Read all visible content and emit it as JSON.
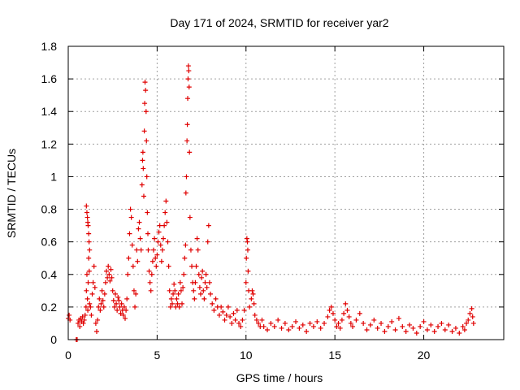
{
  "chart_data": {
    "type": "scatter",
    "title": "Day 171 of 2024, SRMTID for receiver yar2",
    "xlabel": "GPS time / hours",
    "ylabel": "SRMTID / TECUs",
    "xlim": [
      0,
      24.5
    ],
    "ylim": [
      0,
      1.8
    ],
    "xticks": [
      0,
      5,
      10,
      15,
      20
    ],
    "xtick_labels": [
      "0",
      "5",
      "10",
      "15",
      "20"
    ],
    "yticks": [
      0,
      0.2,
      0.4,
      0.6,
      0.8,
      1,
      1.2,
      1.4,
      1.6,
      1.8
    ],
    "ytick_labels": [
      "0",
      "0.2",
      "0.4",
      "0.6",
      "0.8",
      "1",
      "1.2",
      "1.4",
      "1.6",
      "1.8"
    ],
    "grid": true,
    "marker": "+",
    "marker_color": "#e00000",
    "series": [
      {
        "name": "yar2",
        "points": [
          [
            0.0,
            0.13
          ],
          [
            0.05,
            0.15
          ],
          [
            0.1,
            0.12
          ],
          [
            0.45,
            0.0
          ],
          [
            0.5,
            0.0
          ],
          [
            0.55,
            0.1
          ],
          [
            0.6,
            0.12
          ],
          [
            0.65,
            0.08
          ],
          [
            0.7,
            0.13
          ],
          [
            0.75,
            0.11
          ],
          [
            0.8,
            0.14
          ],
          [
            0.85,
            0.1
          ],
          [
            0.9,
            0.12
          ],
          [
            0.95,
            0.15
          ],
          [
            1.0,
            0.2
          ],
          [
            1.02,
            0.3
          ],
          [
            1.05,
            0.4
          ],
          [
            1.08,
            0.25
          ],
          [
            1.1,
            0.18
          ],
          [
            1.12,
            0.35
          ],
          [
            1.15,
            0.5
          ],
          [
            1.18,
            0.42
          ],
          [
            1.2,
            0.22
          ],
          [
            1.02,
            0.82
          ],
          [
            1.05,
            0.78
          ],
          [
            1.08,
            0.75
          ],
          [
            1.1,
            0.72
          ],
          [
            1.12,
            0.7
          ],
          [
            1.15,
            0.65
          ],
          [
            1.17,
            0.6
          ],
          [
            1.2,
            0.55
          ],
          [
            1.25,
            0.2
          ],
          [
            1.3,
            0.15
          ],
          [
            1.35,
            0.28
          ],
          [
            1.4,
            0.35
          ],
          [
            1.45,
            0.45
          ],
          [
            1.5,
            0.32
          ],
          [
            1.55,
            0.1
          ],
          [
            1.6,
            0.05
          ],
          [
            1.65,
            0.12
          ],
          [
            1.7,
            0.2
          ],
          [
            1.75,
            0.25
          ],
          [
            1.8,
            0.18
          ],
          [
            1.85,
            0.22
          ],
          [
            1.9,
            0.3
          ],
          [
            1.95,
            0.24
          ],
          [
            2.0,
            0.2
          ],
          [
            2.05,
            0.28
          ],
          [
            2.1,
            0.35
          ],
          [
            2.15,
            0.42
          ],
          [
            2.2,
            0.38
          ],
          [
            2.25,
            0.45
          ],
          [
            2.3,
            0.4
          ],
          [
            2.35,
            0.36
          ],
          [
            2.4,
            0.43
          ],
          [
            2.45,
            0.38
          ],
          [
            2.5,
            0.3
          ],
          [
            2.55,
            0.24
          ],
          [
            2.6,
            0.2
          ],
          [
            2.65,
            0.28
          ],
          [
            2.7,
            0.22
          ],
          [
            2.75,
            0.18
          ],
          [
            2.8,
            0.26
          ],
          [
            2.85,
            0.24
          ],
          [
            2.9,
            0.2
          ],
          [
            2.95,
            0.16
          ],
          [
            3.0,
            0.22
          ],
          [
            3.05,
            0.18
          ],
          [
            3.1,
            0.15
          ],
          [
            3.15,
            0.2
          ],
          [
            3.2,
            0.13
          ],
          [
            3.25,
            0.18
          ],
          [
            3.3,
            0.25
          ],
          [
            3.35,
            0.4
          ],
          [
            3.4,
            0.5
          ],
          [
            3.45,
            0.65
          ],
          [
            3.5,
            0.8
          ],
          [
            3.55,
            0.75
          ],
          [
            3.6,
            0.58
          ],
          [
            3.65,
            0.45
          ],
          [
            3.7,
            0.3
          ],
          [
            3.75,
            0.2
          ],
          [
            3.8,
            0.28
          ],
          [
            3.85,
            0.55
          ],
          [
            3.9,
            0.48
          ],
          [
            3.95,
            0.68
          ],
          [
            4.0,
            0.72
          ],
          [
            4.05,
            0.62
          ],
          [
            4.1,
            0.55
          ],
          [
            4.15,
            0.95
          ],
          [
            4.18,
            1.1
          ],
          [
            4.2,
            1.15
          ],
          [
            4.22,
            1.05
          ],
          [
            4.25,
            0.88
          ],
          [
            4.28,
            1.28
          ],
          [
            4.3,
            1.45
          ],
          [
            4.32,
            1.58
          ],
          [
            4.35,
            1.53
          ],
          [
            4.38,
            1.4
          ],
          [
            4.4,
            1.22
          ],
          [
            4.42,
            1.0
          ],
          [
            4.45,
            0.78
          ],
          [
            4.48,
            0.65
          ],
          [
            4.5,
            0.55
          ],
          [
            4.55,
            0.42
          ],
          [
            4.6,
            0.35
          ],
          [
            4.65,
            0.3
          ],
          [
            4.7,
            0.4
          ],
          [
            4.75,
            0.48
          ],
          [
            4.8,
            0.55
          ],
          [
            4.85,
            0.62
          ],
          [
            4.9,
            0.5
          ],
          [
            4.95,
            0.45
          ],
          [
            5.0,
            0.52
          ],
          [
            5.05,
            0.6
          ],
          [
            5.1,
            0.66
          ],
          [
            5.15,
            0.7
          ],
          [
            5.2,
            0.58
          ],
          [
            5.25,
            0.48
          ],
          [
            5.3,
            0.55
          ],
          [
            5.35,
            0.62
          ],
          [
            5.4,
            0.7
          ],
          [
            5.45,
            0.78
          ],
          [
            5.5,
            0.85
          ],
          [
            5.55,
            0.72
          ],
          [
            5.6,
            0.6
          ],
          [
            5.65,
            0.45
          ],
          [
            5.7,
            0.3
          ],
          [
            5.75,
            0.2
          ],
          [
            5.8,
            0.25
          ],
          [
            5.85,
            0.22
          ],
          [
            5.9,
            0.28
          ],
          [
            5.95,
            0.34
          ],
          [
            6.0,
            0.3
          ],
          [
            6.05,
            0.2
          ],
          [
            6.1,
            0.25
          ],
          [
            6.15,
            0.22
          ],
          [
            6.2,
            0.28
          ],
          [
            6.25,
            0.2
          ],
          [
            6.3,
            0.35
          ],
          [
            6.35,
            0.3
          ],
          [
            6.4,
            0.22
          ],
          [
            6.45,
            0.32
          ],
          [
            6.5,
            0.4
          ],
          [
            6.55,
            0.5
          ],
          [
            6.6,
            0.58
          ],
          [
            6.62,
            0.9
          ],
          [
            6.65,
            1.0
          ],
          [
            6.68,
            1.22
          ],
          [
            6.7,
            1.32
          ],
          [
            6.72,
            1.48
          ],
          [
            6.74,
            1.6
          ],
          [
            6.76,
            1.68
          ],
          [
            6.78,
            1.65
          ],
          [
            6.8,
            1.55
          ],
          [
            6.82,
            1.15
          ],
          [
            6.85,
            0.75
          ],
          [
            6.9,
            0.55
          ],
          [
            6.95,
            0.45
          ],
          [
            7.0,
            0.35
          ],
          [
            7.05,
            0.3
          ],
          [
            7.1,
            0.25
          ],
          [
            7.15,
            0.35
          ],
          [
            7.2,
            0.45
          ],
          [
            7.25,
            0.62
          ],
          [
            7.3,
            0.55
          ],
          [
            7.35,
            0.4
          ],
          [
            7.4,
            0.32
          ],
          [
            7.45,
            0.28
          ],
          [
            7.5,
            0.38
          ],
          [
            7.55,
            0.42
          ],
          [
            7.6,
            0.3
          ],
          [
            7.65,
            0.25
          ],
          [
            7.7,
            0.35
          ],
          [
            7.75,
            0.4
          ],
          [
            7.8,
            0.32
          ],
          [
            7.85,
            0.6
          ],
          [
            7.9,
            0.7
          ],
          [
            7.95,
            0.35
          ],
          [
            8.0,
            0.28
          ],
          [
            8.1,
            0.22
          ],
          [
            8.2,
            0.18
          ],
          [
            8.3,
            0.25
          ],
          [
            8.4,
            0.2
          ],
          [
            8.5,
            0.15
          ],
          [
            8.6,
            0.2
          ],
          [
            8.7,
            0.17
          ],
          [
            8.8,
            0.12
          ],
          [
            8.9,
            0.15
          ],
          [
            9.0,
            0.2
          ],
          [
            9.1,
            0.14
          ],
          [
            9.2,
            0.1
          ],
          [
            9.3,
            0.16
          ],
          [
            9.4,
            0.12
          ],
          [
            9.5,
            0.18
          ],
          [
            9.6,
            0.1
          ],
          [
            9.7,
            0.08
          ],
          [
            9.8,
            0.12
          ],
          [
            9.9,
            0.18
          ],
          [
            10.0,
            0.35
          ],
          [
            10.02,
            0.5
          ],
          [
            10.05,
            0.62
          ],
          [
            10.08,
            0.6
          ],
          [
            10.1,
            0.55
          ],
          [
            10.12,
            0.42
          ],
          [
            10.15,
            0.3
          ],
          [
            10.2,
            0.2
          ],
          [
            10.3,
            0.25
          ],
          [
            10.35,
            0.3
          ],
          [
            10.4,
            0.28
          ],
          [
            10.45,
            0.22
          ],
          [
            10.5,
            0.15
          ],
          [
            10.6,
            0.12
          ],
          [
            10.7,
            0.1
          ],
          [
            10.8,
            0.08
          ],
          [
            10.9,
            0.12
          ],
          [
            11.0,
            0.08
          ],
          [
            11.2,
            0.06
          ],
          [
            11.4,
            0.1
          ],
          [
            11.6,
            0.08
          ],
          [
            11.8,
            0.12
          ],
          [
            12.0,
            0.07
          ],
          [
            12.2,
            0.1
          ],
          [
            12.4,
            0.06
          ],
          [
            12.6,
            0.08
          ],
          [
            12.8,
            0.11
          ],
          [
            13.0,
            0.07
          ],
          [
            13.2,
            0.09
          ],
          [
            13.4,
            0.05
          ],
          [
            13.6,
            0.1
          ],
          [
            13.8,
            0.08
          ],
          [
            14.0,
            0.11
          ],
          [
            14.2,
            0.07
          ],
          [
            14.4,
            0.1
          ],
          [
            14.6,
            0.14
          ],
          [
            14.7,
            0.18
          ],
          [
            14.8,
            0.2
          ],
          [
            14.9,
            0.16
          ],
          [
            15.0,
            0.12
          ],
          [
            15.1,
            0.08
          ],
          [
            15.2,
            0.1
          ],
          [
            15.3,
            0.07
          ],
          [
            15.4,
            0.12
          ],
          [
            15.5,
            0.16
          ],
          [
            15.6,
            0.22
          ],
          [
            15.7,
            0.18
          ],
          [
            15.8,
            0.14
          ],
          [
            15.9,
            0.1
          ],
          [
            16.0,
            0.08
          ],
          [
            16.2,
            0.12
          ],
          [
            16.4,
            0.16
          ],
          [
            16.6,
            0.1
          ],
          [
            16.8,
            0.06
          ],
          [
            17.0,
            0.09
          ],
          [
            17.2,
            0.12
          ],
          [
            17.4,
            0.07
          ],
          [
            17.6,
            0.1
          ],
          [
            17.8,
            0.05
          ],
          [
            18.0,
            0.08
          ],
          [
            18.2,
            0.11
          ],
          [
            18.4,
            0.06
          ],
          [
            18.6,
            0.13
          ],
          [
            18.8,
            0.08
          ],
          [
            19.0,
            0.05
          ],
          [
            19.2,
            0.09
          ],
          [
            19.4,
            0.07
          ],
          [
            19.6,
            0.04
          ],
          [
            19.8,
            0.08
          ],
          [
            20.0,
            0.11
          ],
          [
            20.2,
            0.06
          ],
          [
            20.4,
            0.09
          ],
          [
            20.6,
            0.05
          ],
          [
            20.8,
            0.08
          ],
          [
            21.0,
            0.1
          ],
          [
            21.2,
            0.06
          ],
          [
            21.4,
            0.09
          ],
          [
            21.6,
            0.05
          ],
          [
            21.8,
            0.07
          ],
          [
            22.0,
            0.04
          ],
          [
            22.2,
            0.08
          ],
          [
            22.3,
            0.06
          ],
          [
            22.4,
            0.1
          ],
          [
            22.5,
            0.12
          ],
          [
            22.6,
            0.16
          ],
          [
            22.7,
            0.19
          ],
          [
            22.75,
            0.14
          ],
          [
            22.8,
            0.1
          ]
        ]
      }
    ]
  }
}
